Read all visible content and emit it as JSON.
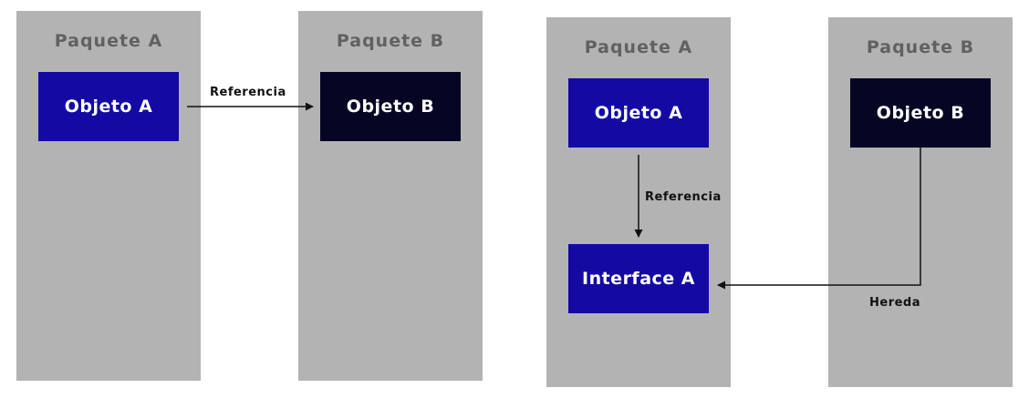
{
  "diagram_left": {
    "package_a": {
      "title": "Paquete A"
    },
    "package_b": {
      "title": "Paquete B"
    },
    "object_a": {
      "label": "Objeto A"
    },
    "object_b": {
      "label": "Objeto B"
    },
    "reference_label": "Referencia"
  },
  "diagram_right": {
    "package_a": {
      "title": "Paquete A"
    },
    "package_b": {
      "title": "Paquete B"
    },
    "object_a": {
      "label": "Objeto A"
    },
    "object_b": {
      "label": "Objeto B"
    },
    "interface_a": {
      "label": "Interface A"
    },
    "reference_label": "Referencia",
    "inherits_label": "Hereda"
  },
  "colors": {
    "package_background": "#b3b3b3",
    "package_title": "#616161",
    "object_blue": "#140aa3",
    "object_dark": "#060624",
    "arrow": "#111111"
  }
}
